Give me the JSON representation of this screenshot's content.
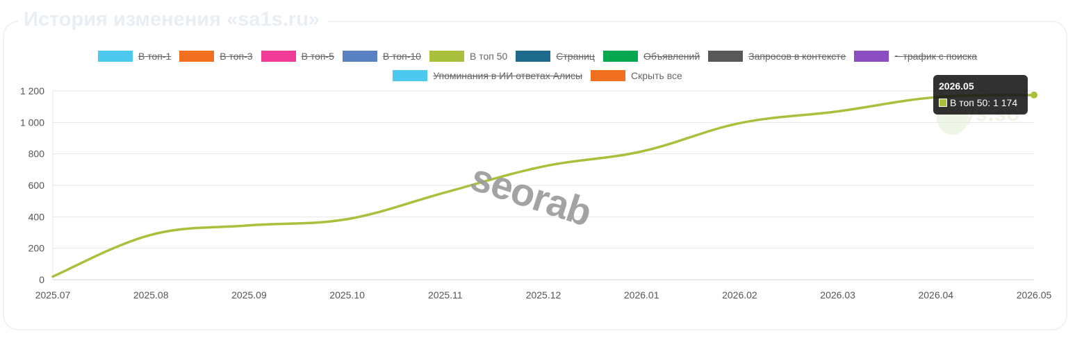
{
  "page": {
    "title": "История изменения «sa1s.ru»",
    "watermark_text": "seorab",
    "logo_text": "Keys.so"
  },
  "legend": [
    {
      "label": "В топ-1",
      "color": "#4dc9f0",
      "hidden": true
    },
    {
      "label": "В топ-3",
      "color": "#f07020",
      "hidden": true
    },
    {
      "label": "В топ-5",
      "color": "#f03c96",
      "hidden": true
    },
    {
      "label": "В топ-10",
      "color": "#5a80c4",
      "hidden": true
    },
    {
      "label": "В топ 50",
      "color": "#a8c03c",
      "hidden": false
    },
    {
      "label": "Страниц",
      "color": "#1d6a8c",
      "hidden": true
    },
    {
      "label": "Объявлений",
      "color": "#05a84e",
      "hidden": true
    },
    {
      "label": "Запросов в контексте",
      "color": "#585858",
      "hidden": true
    },
    {
      "label": "~ трафик с поиска",
      "color": "#8a4ec0",
      "hidden": true
    },
    {
      "label": "Упоминания в ИИ ответах Алисы",
      "color": "#4dc9f0",
      "hidden": true
    },
    {
      "label": "Скрыть все",
      "color": "#f07020",
      "hidden": false
    }
  ],
  "tooltip": {
    "title": "2026.05",
    "text": "В топ 50: 1 174",
    "color": "#a8c03c"
  },
  "chart_data": {
    "type": "line",
    "x": [
      "2025.07",
      "2025.08",
      "2025.09",
      "2025.10",
      "2025.11",
      "2025.12",
      "2026.01",
      "2026.02",
      "2026.03",
      "2026.04",
      "2026.05"
    ],
    "series": [
      {
        "name": "В топ 50",
        "color": "#a8c03c",
        "values": [
          20,
          285,
          345,
          385,
          555,
          720,
          815,
          995,
          1070,
          1160,
          1174
        ]
      }
    ],
    "ylim": [
      0,
      1200
    ],
    "yticks": [
      0,
      200,
      400,
      600,
      800,
      1000,
      1200
    ],
    "ytick_labels": [
      "0",
      "200",
      "400",
      "600",
      "800",
      "1 000",
      "1 200"
    ],
    "grid": true,
    "legend_position": "top-center",
    "xlabel": "",
    "ylabel": ""
  }
}
